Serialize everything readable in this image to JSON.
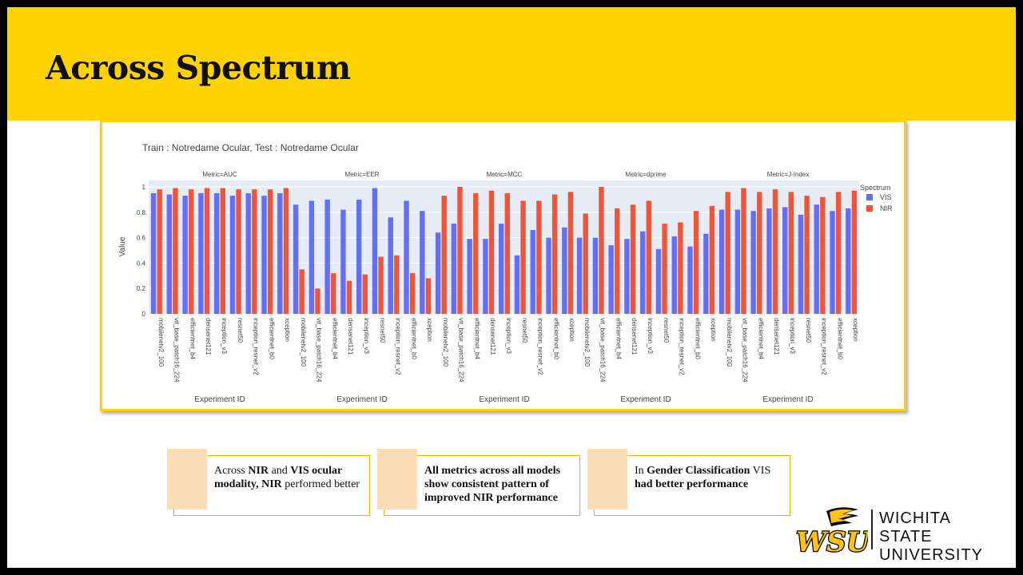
{
  "slide": {
    "title": "Across Spectrum"
  },
  "chart_data": {
    "type": "bar",
    "title": "Train : Notredame Ocular, Test : Notredame Ocular",
    "ylabel": "Value",
    "xlabel": "Experiment ID",
    "legend": {
      "title": "Spectrum",
      "placement": "right"
    },
    "categories": [
      "mobilenetv2_100",
      "vit_base_patch16_224",
      "efficientnet_b4",
      "densenet121",
      "inception_v3",
      "resnet50",
      "inception_resnet_v2",
      "efficientnet_b0",
      "xception"
    ],
    "y_ticks": [
      "0",
      "0.2",
      "0.4",
      "0.6",
      "0.8",
      "1"
    ],
    "ylim": [
      0,
      1.05
    ],
    "colors": {
      "VIS": "#636EFA",
      "NIR": "#EF553B"
    },
    "panels": [
      {
        "metric": "Metric=AUC",
        "series": [
          {
            "name": "VIS",
            "values": [
              0.95,
              0.94,
              0.93,
              0.95,
              0.95,
              0.93,
              0.95,
              0.93,
              0.95
            ]
          },
          {
            "name": "NIR",
            "values": [
              0.98,
              0.99,
              0.98,
              0.99,
              0.99,
              0.98,
              0.98,
              0.98,
              0.99
            ]
          }
        ]
      },
      {
        "metric": "Metric=EER",
        "series": [
          {
            "name": "VIS",
            "values": [
              0.86,
              0.89,
              0.9,
              0.82,
              0.9,
              0.99,
              0.76,
              0.89,
              0.81
            ]
          },
          {
            "name": "NIR",
            "values": [
              0.35,
              0.2,
              0.32,
              0.26,
              0.31,
              0.45,
              0.46,
              0.32,
              0.28
            ]
          }
        ]
      },
      {
        "metric": "Metric=MCC",
        "series": [
          {
            "name": "VIS",
            "values": [
              0.64,
              0.71,
              0.59,
              0.59,
              0.71,
              0.46,
              0.66,
              0.6,
              0.68
            ]
          },
          {
            "name": "NIR",
            "values": [
              0.93,
              1.0,
              0.95,
              0.97,
              0.95,
              0.89,
              0.89,
              0.94,
              0.96
            ]
          }
        ]
      },
      {
        "metric": "Metric=dprime",
        "series": [
          {
            "name": "VIS",
            "values": [
              0.6,
              0.6,
              0.54,
              0.59,
              0.65,
              0.51,
              0.61,
              0.53,
              0.63
            ]
          },
          {
            "name": "NIR",
            "values": [
              0.79,
              1.0,
              0.83,
              0.86,
              0.89,
              0.71,
              0.72,
              0.81,
              0.85
            ]
          }
        ]
      },
      {
        "metric": "Metric=J-Index",
        "series": [
          {
            "name": "VIS",
            "values": [
              0.82,
              0.82,
              0.81,
              0.83,
              0.84,
              0.78,
              0.86,
              0.81,
              0.83
            ]
          },
          {
            "name": "NIR",
            "values": [
              0.96,
              0.99,
              0.96,
              0.98,
              0.96,
              0.93,
              0.92,
              0.96,
              0.97
            ]
          }
        ]
      }
    ]
  },
  "callouts": [
    {
      "segments": [
        {
          "t": "Across ",
          "b": false
        },
        {
          "t": "NIR",
          "b": true
        },
        {
          "t": " and ",
          "b": false
        },
        {
          "t": "VIS ocular modality,",
          "b": true
        },
        {
          "t": " ",
          "b": false
        },
        {
          "t": "NIR",
          "b": true
        },
        {
          "t": " performed better",
          "b": false
        }
      ]
    },
    {
      "segments": [
        {
          "t": "All metrics across all models show consistent pattern of improved NIR performance",
          "b": true
        }
      ]
    },
    {
      "segments": [
        {
          "t": "In ",
          "b": false
        },
        {
          "t": "Gender Classification",
          "b": true
        },
        {
          "t": " VIS ",
          "b": false
        },
        {
          "t": "had better performance",
          "b": true
        }
      ]
    }
  ],
  "logo": {
    "line1": "WICHITA STATE",
    "line2": "UNIVERSITY",
    "monogram": "WSU",
    "colors": {
      "gold": "#FFC217",
      "black": "#000000"
    }
  }
}
